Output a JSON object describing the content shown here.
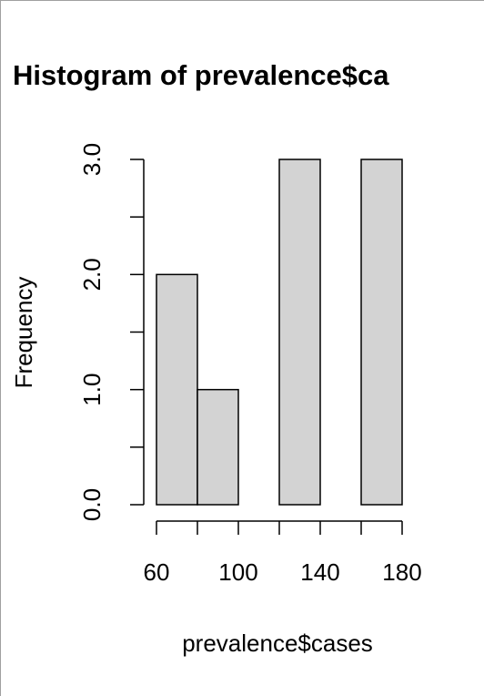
{
  "chart_data": {
    "type": "histogram",
    "title": "Histogram of prevalence$ca",
    "x_label": "prevalence$cases",
    "y_label": "Frequency",
    "bins": [
      60,
      80,
      100,
      120,
      140,
      160,
      180
    ],
    "counts": [
      2,
      1,
      0,
      3,
      0,
      3
    ],
    "color": "#d3d3d3",
    "xlim": [
      60,
      180
    ],
    "xticks": [
      60,
      100,
      140,
      180
    ],
    "xminorticks": [
      80,
      120,
      160
    ],
    "ylim": [
      0,
      3
    ],
    "yticks": [
      {
        "value": 0,
        "label": "0.0"
      },
      {
        "value": 1,
        "label": "1.0"
      },
      {
        "value": 2,
        "label": "2.0"
      },
      {
        "value": 3,
        "label": "3.0"
      }
    ],
    "yminorticks": [
      0.5,
      1.5,
      2.5
    ]
  }
}
